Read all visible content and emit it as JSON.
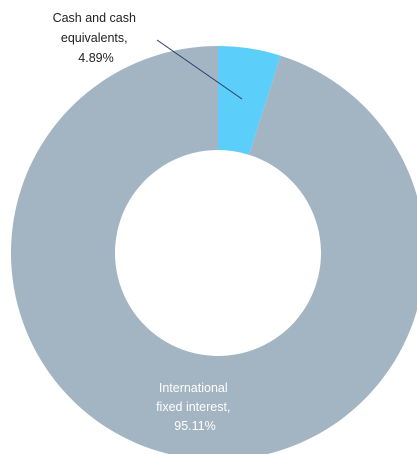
{
  "chart_data": {
    "type": "pie",
    "donut": true,
    "categories": [
      "Cash and cash equivalents",
      "International fixed interest"
    ],
    "values": [
      4.89,
      95.11
    ],
    "unit": "%",
    "colors": [
      "#5bcefa",
      "#a3b4c2"
    ],
    "labels": [
      {
        "lines": [
          "Cash and cash",
          "equivalents,",
          "4.89%"
        ]
      },
      {
        "lines": [
          "International",
          "fixed interest,",
          "95.11%"
        ]
      }
    ],
    "leader_line_color": "#2e3a66"
  }
}
